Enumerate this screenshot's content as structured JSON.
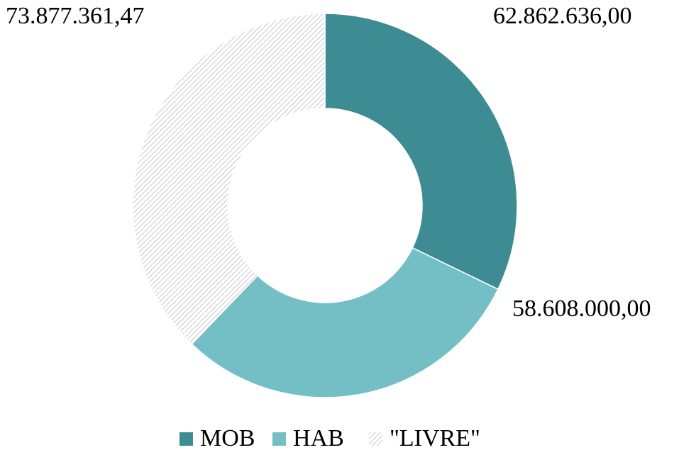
{
  "chart_data": {
    "type": "donut",
    "categories": [
      "MOB",
      "HAB",
      "\"LIVRE\""
    ],
    "values": [
      62862636.0,
      58608000.0,
      73877361.47
    ],
    "value_labels": [
      "62.862.636,00",
      "58.608.000,00",
      "73.877.361,47"
    ],
    "colors": [
      "#3e8c93",
      "#74bfc5",
      "#c8c8c8"
    ],
    "patterns": [
      null,
      null,
      "hatch"
    ],
    "legend": "bottom"
  }
}
